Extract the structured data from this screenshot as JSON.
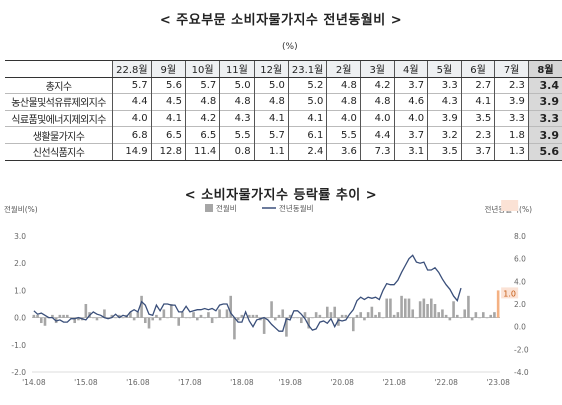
{
  "table_title": "< 주요부문 소비자물가지수 전년동월비 >",
  "table_unit": "(%)",
  "months": [
    "22.8월",
    "9월",
    "10월",
    "11월",
    "12월",
    "23.1월",
    "2월",
    "3월",
    "4월",
    "5월",
    "6월",
    "7월",
    "8월"
  ],
  "rows": [
    {
      "label": "총지수",
      "values": [
        "5.7",
        "5.6",
        "5.7",
        "5.0",
        "5.0",
        "5.2",
        "4.8",
        "4.2",
        "3.7",
        "3.3",
        "2.7",
        "2.3",
        "3.4"
      ]
    },
    {
      "label": "농산물및석유류제외지수",
      "values": [
        "4.4",
        "4.5",
        "4.8",
        "4.8",
        "4.8",
        "5.0",
        "4.8",
        "4.8",
        "4.6",
        "4.3",
        "4.1",
        "3.9",
        "3.9"
      ]
    },
    {
      "label": "식료품및에너지제외지수",
      "values": [
        "4.0",
        "4.1",
        "4.2",
        "4.3",
        "4.1",
        "4.1",
        "4.0",
        "4.0",
        "4.0",
        "3.9",
        "3.5",
        "3.3",
        "3.3"
      ]
    },
    {
      "label": "생활물가지수",
      "values": [
        "6.8",
        "6.5",
        "6.5",
        "5.5",
        "5.7",
        "6.1",
        "5.5",
        "4.4",
        "3.7",
        "3.2",
        "2.3",
        "1.8",
        "3.9"
      ]
    },
    {
      "label": "신선식품지수",
      "values": [
        "14.9",
        "12.8",
        "11.4",
        "0.8",
        "1.1",
        "2.4",
        "3.6",
        "7.3",
        "3.1",
        "3.5",
        "3.7",
        "1.3",
        "5.6"
      ]
    }
  ],
  "chart_title": "< 소비자물가지수 등락률 추이 >",
  "chart_data": {
    "type": "bar",
    "left_axis_label": "전월비(%)",
    "right_axis_label": "전년동월비(%)",
    "legend": [
      "전월비",
      "전년동월비"
    ],
    "left_ylim": [
      -2.0,
      3.0
    ],
    "left_ticks": [
      "3.0",
      "2.0",
      "1.0",
      "0.0",
      "-1.0",
      "-2.0"
    ],
    "right_ylim": [
      -4.0,
      8.0
    ],
    "right_ticks": [
      "8.0",
      "6.0",
      "4.0",
      "2.0",
      "0.0",
      "-2.0",
      "-4.0"
    ],
    "x_ticks": [
      "'14.08",
      "'15.08",
      "'16.08",
      "'17.08",
      "'18.08",
      "'19.08",
      "'20.08",
      "'21.08",
      "'22.08",
      "'23.08"
    ],
    "annotations": {
      "yoy_latest": "3.4",
      "mom_latest": "1.0"
    },
    "series": [
      {
        "name": "전월비",
        "axis": "left",
        "values": [
          0.1,
          0.1,
          -0.2,
          -0.3,
          0.0,
          0.1,
          -0.2,
          0.1,
          0.1,
          0.1,
          0.0,
          -0.2,
          -0.1,
          -0.1,
          0.5,
          0.2,
          0.0,
          -0.1,
          0.0,
          0.3,
          0.0,
          0.1,
          0.0,
          0.1,
          0.0,
          0.1,
          0.2,
          -0.1,
          0.2,
          0.8,
          -0.2,
          -0.4,
          -0.1,
          0.1,
          -0.1,
          0.3,
          0.0,
          0.5,
          0.0,
          -0.3,
          0.2,
          0.0,
          0.0,
          0.2,
          -0.1,
          0.1,
          0.0,
          0.2,
          -0.2,
          0.0,
          0.3,
          0.0,
          0.3,
          0.8,
          -0.8,
          -0.1,
          0.1,
          0.0,
          0.1,
          0.1,
          0.1,
          -0.1,
          -0.6,
          0.0,
          0.6,
          -0.1,
          0.1,
          0.3,
          -0.7,
          0.1,
          0.0,
          0.0,
          -0.2,
          0.2,
          -0.4,
          0.0,
          0.2,
          0.1,
          0.0,
          0.4,
          0.2,
          0.4,
          -0.3,
          0.1,
          0.1,
          0.0,
          -0.5,
          0.1,
          0.2,
          -0.1,
          0.2,
          0.4,
          0.1,
          0.2,
          0.0,
          0.7,
          0.7,
          0.1,
          0.2,
          0.8,
          0.7,
          0.7,
          0.3,
          0.0,
          0.6,
          0.7,
          0.5,
          0.7,
          0.5,
          0.2,
          0.3,
          0.1,
          -0.1,
          0.6,
          0.1,
          0.0,
          0.3,
          0.8,
          -0.1,
          0.2,
          0.0,
          0.2,
          0.0,
          0.1,
          0.2,
          1.0
        ]
      },
      {
        "name": "전년동월비",
        "axis": "right",
        "values": [
          1.4,
          1.1,
          1.2,
          1.0,
          0.8,
          0.8,
          0.5,
          0.6,
          0.4,
          0.4,
          0.7,
          0.7,
          0.8,
          0.7,
          0.6,
          1.0,
          1.3,
          1.1,
          1.0,
          0.8,
          0.7,
          0.8,
          1.1,
          0.8,
          1.0,
          0.9,
          1.3,
          1.5,
          1.3,
          2.2,
          1.9,
          1.1,
          1.0,
          1.9,
          1.4,
          2.0,
          2.0,
          1.9,
          1.9,
          1.3,
          1.3,
          1.8,
          1.3,
          1.4,
          1.5,
          1.5,
          1.6,
          1.5,
          1.6,
          1.4,
          1.9,
          2.0,
          2.0,
          1.2,
          0.8,
          0.4,
          0.4,
          1.3,
          0.5,
          0.0,
          0.6,
          0.7,
          0.8,
          0.6,
          0.2,
          -0.1,
          -0.4,
          -0.4,
          0.7,
          0.6,
          1.4,
          1.4,
          1.1,
          0.7,
          0.1,
          -0.3,
          -0.2,
          0.4,
          0.5,
          0.3,
          0.7,
          0.0,
          0.6,
          0.5,
          0.6,
          1.1,
          1.5,
          2.3,
          2.6,
          2.4,
          2.6,
          2.5,
          2.6,
          2.4,
          3.2,
          3.8,
          3.7,
          3.7,
          4.1,
          4.8,
          5.4,
          6.0,
          6.3,
          5.7,
          5.6,
          5.7,
          5.0,
          5.0,
          5.2,
          4.8,
          4.2,
          3.7,
          3.3,
          2.7,
          2.3,
          3.4
        ]
      }
    ]
  }
}
